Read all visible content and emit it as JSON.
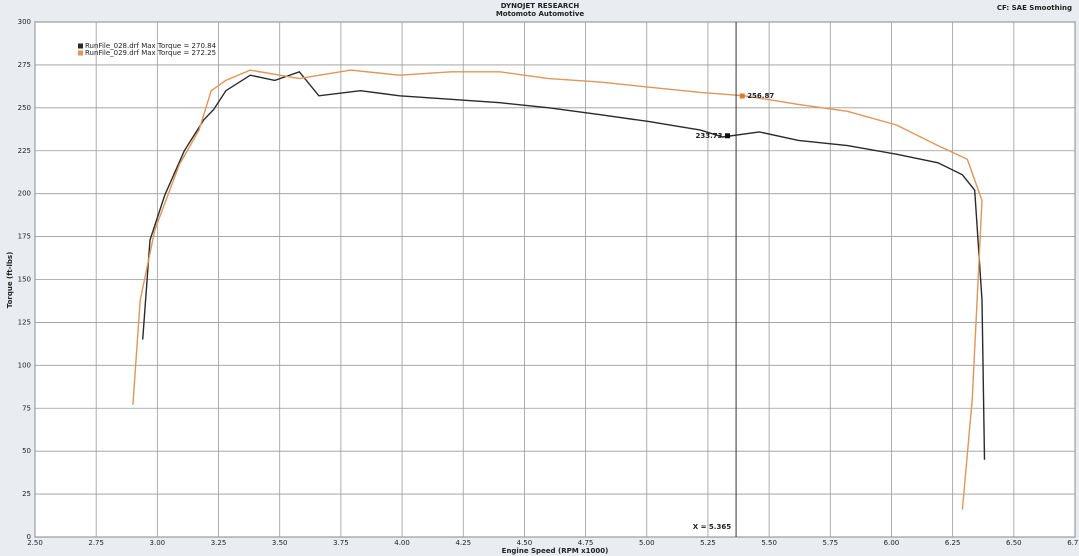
{
  "chart_data": {
    "type": "line",
    "title": "DYNOJET RESEARCH",
    "subtitle": "Motomoto Automotive",
    "corner_note": "CF: SAE  Smoothing",
    "x_label": "Engine Speed (RPM x1000)",
    "y_label": "Torque (ft-lbs)",
    "xlim": [
      2.5,
      6.75
    ],
    "ylim": [
      0,
      300
    ],
    "xticks": [
      {
        "value": 2.5,
        "label": "2.50"
      },
      {
        "value": 2.75,
        "label": "2.75"
      },
      {
        "value": 3,
        "label": "3.00"
      },
      {
        "value": 3.25,
        "label": "3.25"
      },
      {
        "value": 3.5,
        "label": "3.50"
      },
      {
        "value": 3.75,
        "label": "3.75"
      },
      {
        "value": 4,
        "label": "4.00"
      },
      {
        "value": 4.25,
        "label": "4.25"
      },
      {
        "value": 4.5,
        "label": "4.50"
      },
      {
        "value": 4.75,
        "label": "4.75"
      },
      {
        "value": 5,
        "label": "5.00"
      },
      {
        "value": 5.25,
        "label": "5.25"
      },
      {
        "value": 5.5,
        "label": "5.50"
      },
      {
        "value": 5.75,
        "label": "5.75"
      },
      {
        "value": 6,
        "label": "6.00"
      },
      {
        "value": 6.25,
        "label": "6.25"
      },
      {
        "value": 6.5,
        "label": "6.50"
      },
      {
        "value": 6.75,
        "label": "6.75"
      }
    ],
    "yticks": [
      0,
      25,
      50,
      75,
      100,
      125,
      150,
      175,
      200,
      225,
      250,
      275,
      300
    ],
    "grid": true,
    "series": [
      {
        "name": "RunFile_028.drf Max Torque = 270.84",
        "color": "#2a2a2a",
        "x": [
          2.94,
          2.97,
          3.03,
          3.11,
          3.19,
          3.23,
          3.28,
          3.38,
          3.48,
          3.58,
          3.66,
          3.83,
          3.99,
          4.2,
          4.4,
          4.6,
          4.81,
          5.01,
          5.22,
          5.31,
          5.46,
          5.62,
          5.82,
          6.02,
          6.19,
          6.29,
          6.34,
          6.37,
          6.38
        ],
        "values": [
          115,
          173,
          199,
          225,
          243,
          249,
          260,
          269,
          266,
          271,
          257,
          260,
          257,
          255,
          253,
          250,
          246,
          242,
          237,
          233,
          236,
          231,
          228,
          223,
          218,
          211,
          202,
          138,
          45
        ]
      },
      {
        "name": "RunFile_029.drf Max Torque = 272.25",
        "color": "#e0955a",
        "x": [
          2.9,
          2.93,
          2.99,
          3.09,
          3.17,
          3.22,
          3.28,
          3.38,
          3.58,
          3.79,
          3.99,
          4.2,
          4.4,
          4.6,
          4.81,
          5.01,
          5.22,
          5.4,
          5.62,
          5.82,
          6.02,
          6.19,
          6.31,
          6.37,
          6.33,
          6.29
        ],
        "values": [
          77,
          138,
          179,
          217,
          237,
          260,
          266,
          272,
          267,
          272,
          269,
          271,
          271,
          267,
          265,
          262,
          259,
          257,
          252,
          248,
          240,
          228,
          220,
          196,
          80,
          16
        ]
      }
    ],
    "cursor": {
      "x": 5.365,
      "label": "X = 5.365"
    },
    "markers": [
      {
        "x": 5.33,
        "y": 233.73,
        "label": "233.73",
        "color": "#111111"
      },
      {
        "x": 5.39,
        "y": 256.87,
        "label": "256.87",
        "color": "#e07a30"
      }
    ]
  }
}
